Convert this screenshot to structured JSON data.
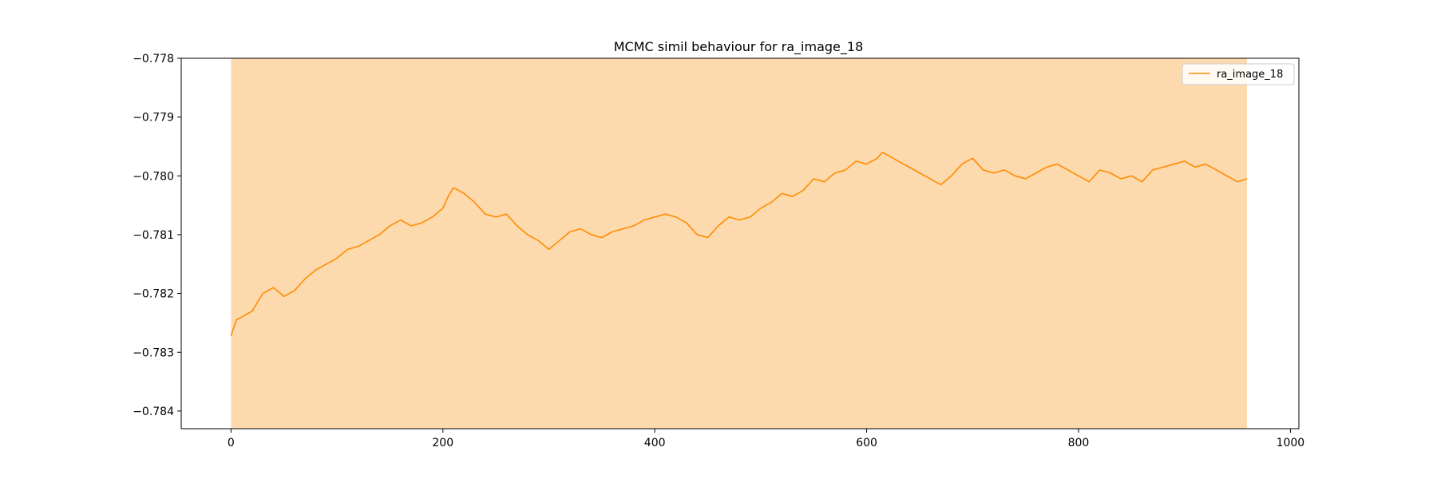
{
  "chart_data": {
    "type": "line",
    "title": "MCMC simil behaviour for ra_image_18",
    "xlabel": "",
    "ylabel": "",
    "xlim": [
      -47,
      1008
    ],
    "ylim": [
      -0.7843,
      -0.778
    ],
    "xticks": [
      0,
      200,
      400,
      600,
      800,
      1000
    ],
    "xtick_labels": [
      "0",
      "200",
      "400",
      "600",
      "800",
      "1000"
    ],
    "yticks": [
      -0.784,
      -0.783,
      -0.782,
      -0.781,
      -0.78,
      -0.779,
      -0.778
    ],
    "ytick_labels": [
      "−0.784",
      "−0.783",
      "−0.782",
      "−0.781",
      "−0.780",
      "−0.779",
      "−0.778"
    ],
    "grid": false,
    "legend": {
      "position": "top-right",
      "entries": [
        "ra_image_18"
      ]
    },
    "shaded_region": {
      "x_start": 0,
      "x_end": 959,
      "color": "#fdd9ae"
    },
    "series": [
      {
        "name": "ra_image_18",
        "color": "#ff8c00",
        "x": [
          0,
          5,
          10,
          20,
          30,
          40,
          50,
          60,
          70,
          80,
          90,
          100,
          110,
          120,
          130,
          140,
          150,
          160,
          170,
          180,
          190,
          200,
          205,
          210,
          215,
          220,
          230,
          240,
          250,
          260,
          270,
          280,
          290,
          300,
          310,
          320,
          330,
          340,
          350,
          360,
          370,
          380,
          390,
          400,
          410,
          420,
          430,
          440,
          450,
          460,
          470,
          480,
          490,
          500,
          510,
          520,
          530,
          540,
          550,
          560,
          570,
          580,
          590,
          600,
          610,
          615,
          620,
          630,
          640,
          650,
          660,
          670,
          680,
          690,
          700,
          710,
          720,
          730,
          740,
          750,
          760,
          770,
          780,
          790,
          800,
          810,
          820,
          830,
          840,
          850,
          860,
          870,
          880,
          890,
          900,
          910,
          920,
          930,
          940,
          950,
          959
        ],
        "y": [
          -0.78272,
          -0.78245,
          -0.7824,
          -0.7823,
          -0.782,
          -0.7819,
          -0.78205,
          -0.78195,
          -0.78175,
          -0.7816,
          -0.7815,
          -0.7814,
          -0.78125,
          -0.7812,
          -0.7811,
          -0.781,
          -0.78085,
          -0.78075,
          -0.78085,
          -0.7808,
          -0.7807,
          -0.78055,
          -0.78035,
          -0.7802,
          -0.78025,
          -0.7803,
          -0.78045,
          -0.78065,
          -0.7807,
          -0.78065,
          -0.78085,
          -0.781,
          -0.7811,
          -0.78125,
          -0.7811,
          -0.78095,
          -0.7809,
          -0.781,
          -0.78105,
          -0.78095,
          -0.7809,
          -0.78085,
          -0.78075,
          -0.7807,
          -0.78065,
          -0.7807,
          -0.7808,
          -0.781,
          -0.78105,
          -0.78085,
          -0.7807,
          -0.78075,
          -0.7807,
          -0.78055,
          -0.78045,
          -0.7803,
          -0.78035,
          -0.78025,
          -0.78005,
          -0.7801,
          -0.77995,
          -0.7799,
          -0.77975,
          -0.7798,
          -0.7797,
          -0.7796,
          -0.77965,
          -0.77975,
          -0.77985,
          -0.77995,
          -0.78005,
          -0.78015,
          -0.78,
          -0.7798,
          -0.7797,
          -0.7799,
          -0.77995,
          -0.7799,
          -0.78,
          -0.78005,
          -0.77995,
          -0.77985,
          -0.7798,
          -0.7799,
          -0.78,
          -0.7801,
          -0.7799,
          -0.77995,
          -0.78005,
          -0.78,
          -0.7801,
          -0.7799,
          -0.77985,
          -0.7798,
          -0.77975,
          -0.77985,
          -0.7798,
          -0.7799,
          -0.78,
          -0.7801,
          -0.78005
        ]
      }
    ]
  }
}
